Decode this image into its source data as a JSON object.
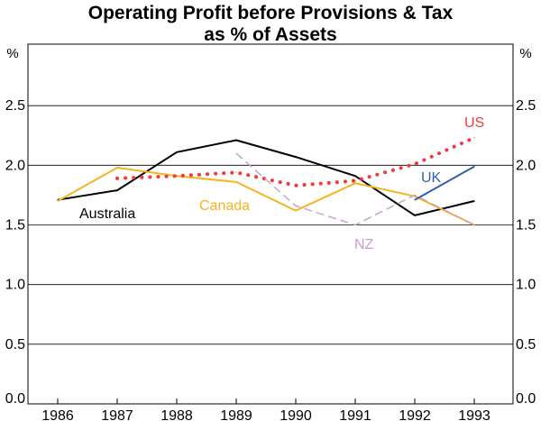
{
  "chart_data": {
    "type": "line",
    "title": [
      "Operating Profit before Provisions & Tax",
      "as % of Assets"
    ],
    "ylabel": "%",
    "ylim": [
      0,
      3
    ],
    "yticks": [
      "0.0",
      "0.5",
      "1.0",
      "1.5",
      "2.0",
      "2.5"
    ],
    "x": [
      1986,
      1987,
      1988,
      1989,
      1990,
      1991,
      1992,
      1993
    ],
    "xtick_labels": [
      "1986",
      "1987",
      "1988",
      "1989",
      "1990",
      "1991",
      "1992",
      "1993"
    ],
    "grid": true,
    "series": [
      {
        "name": "Australia",
        "color": "#000000",
        "style": "solid",
        "points": [
          [
            1986,
            1.71
          ],
          [
            1987,
            1.79
          ],
          [
            1988,
            2.11
          ],
          [
            1989,
            2.21
          ],
          [
            1990,
            2.07
          ],
          [
            1991,
            1.91
          ],
          [
            1992,
            1.58
          ],
          [
            1993,
            1.7
          ]
        ]
      },
      {
        "name": "Canada",
        "color": "#f5b41e",
        "style": "solid",
        "points": [
          [
            1986,
            1.7
          ],
          [
            1987,
            1.98
          ],
          [
            1988,
            1.91
          ],
          [
            1989,
            1.86
          ],
          [
            1990,
            1.62
          ],
          [
            1991,
            1.85
          ],
          [
            1992,
            1.74
          ],
          [
            1993,
            1.5
          ]
        ]
      },
      {
        "name": "US",
        "color": "#ee3b3b",
        "style": "dotted",
        "points": [
          [
            1987,
            1.89
          ],
          [
            1988,
            1.91
          ],
          [
            1989,
            1.94
          ],
          [
            1990,
            1.83
          ],
          [
            1991,
            1.87
          ],
          [
            1992,
            2.01
          ],
          [
            1993,
            2.23
          ]
        ]
      },
      {
        "name": "NZ",
        "color": "#c69ccc",
        "style": "dashed",
        "points": [
          [
            1989,
            2.1
          ],
          [
            1990,
            1.66
          ],
          [
            1991,
            1.5
          ],
          [
            1992,
            1.75
          ],
          [
            1993,
            1.5
          ]
        ]
      },
      {
        "name": "UK",
        "color": "#2f5fa8",
        "style": "solid",
        "points": [
          [
            1992,
            1.71
          ],
          [
            1993,
            1.99
          ]
        ]
      }
    ]
  }
}
